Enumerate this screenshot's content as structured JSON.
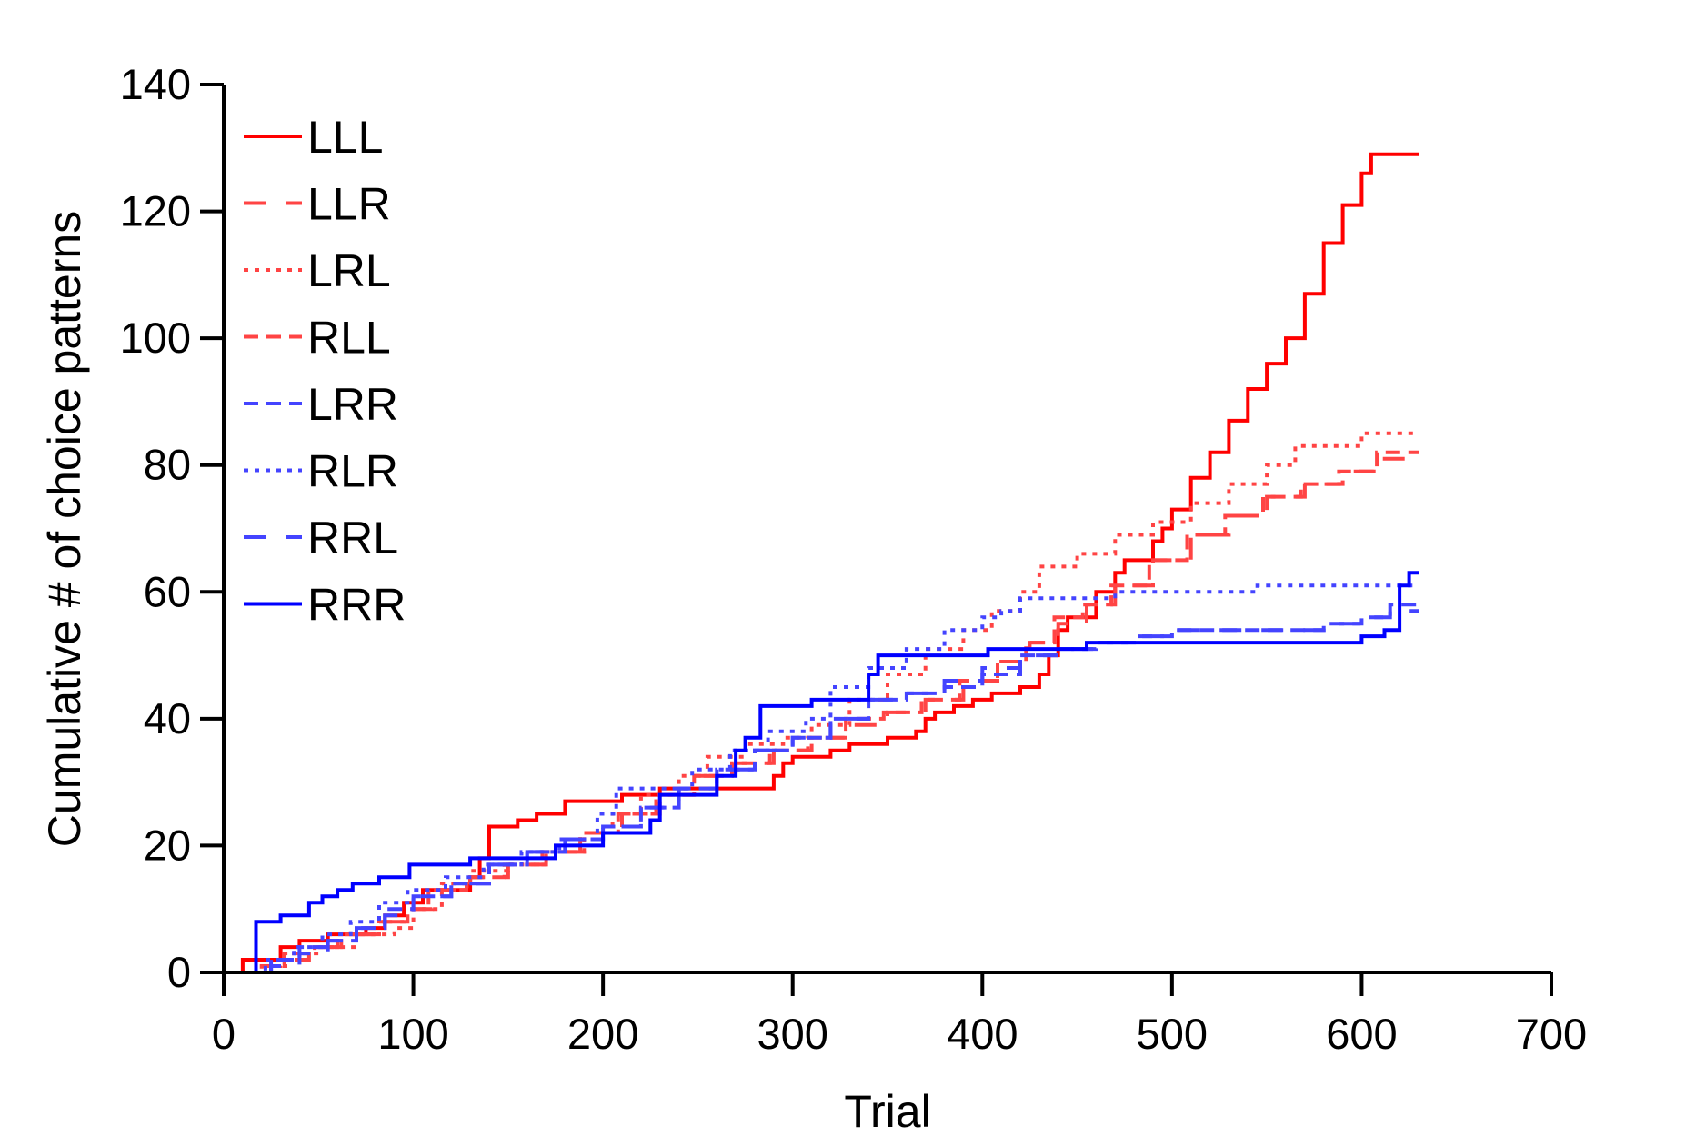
{
  "chart_data": {
    "type": "line",
    "title": "",
    "xlabel": "Trial",
    "ylabel": "Cumulative # of choice patterns",
    "xlim": [
      0,
      700
    ],
    "ylim": [
      0,
      140
    ],
    "xticks": [
      0,
      100,
      200,
      300,
      400,
      500,
      600,
      700
    ],
    "yticks": [
      0,
      20,
      40,
      60,
      80,
      100,
      120,
      140
    ],
    "grid": false,
    "legend_position": "top-left",
    "step": true,
    "series": [
      {
        "name": "LLL",
        "color": "#ff0000",
        "dash": "solid",
        "points": [
          [
            0,
            0
          ],
          [
            5,
            0
          ],
          [
            10,
            2
          ],
          [
            25,
            2
          ],
          [
            30,
            4
          ],
          [
            40,
            5
          ],
          [
            55,
            6
          ],
          [
            75,
            7
          ],
          [
            85,
            9
          ],
          [
            95,
            11
          ],
          [
            105,
            13
          ],
          [
            130,
            15
          ],
          [
            135,
            18
          ],
          [
            140,
            23
          ],
          [
            155,
            24
          ],
          [
            165,
            25
          ],
          [
            180,
            27
          ],
          [
            210,
            28
          ],
          [
            230,
            29
          ],
          [
            285,
            29
          ],
          [
            290,
            31
          ],
          [
            295,
            33
          ],
          [
            300,
            34
          ],
          [
            320,
            35
          ],
          [
            330,
            36
          ],
          [
            350,
            37
          ],
          [
            365,
            38
          ],
          [
            370,
            40
          ],
          [
            375,
            41
          ],
          [
            385,
            42
          ],
          [
            395,
            43
          ],
          [
            405,
            44
          ],
          [
            420,
            45
          ],
          [
            430,
            47
          ],
          [
            435,
            50
          ],
          [
            440,
            54
          ],
          [
            445,
            56
          ],
          [
            460,
            60
          ],
          [
            470,
            63
          ],
          [
            475,
            65
          ],
          [
            490,
            68
          ],
          [
            495,
            70
          ],
          [
            500,
            73
          ],
          [
            510,
            78
          ],
          [
            520,
            82
          ],
          [
            530,
            87
          ],
          [
            540,
            92
          ],
          [
            550,
            96
          ],
          [
            560,
            100
          ],
          [
            570,
            107
          ],
          [
            580,
            115
          ],
          [
            590,
            121
          ],
          [
            600,
            126
          ],
          [
            605,
            129
          ],
          [
            630,
            129
          ]
        ]
      },
      {
        "name": "LLR",
        "color": "#ff4444",
        "dash": "longdash",
        "points": [
          [
            0,
            0
          ],
          [
            10,
            0
          ],
          [
            20,
            1
          ],
          [
            30,
            2
          ],
          [
            45,
            4
          ],
          [
            60,
            6
          ],
          [
            80,
            8
          ],
          [
            95,
            10
          ],
          [
            110,
            13
          ],
          [
            130,
            15
          ],
          [
            150,
            17
          ],
          [
            170,
            19
          ],
          [
            190,
            22
          ],
          [
            210,
            25
          ],
          [
            230,
            28
          ],
          [
            250,
            31
          ],
          [
            270,
            33
          ],
          [
            290,
            35
          ],
          [
            310,
            37
          ],
          [
            330,
            39
          ],
          [
            350,
            41
          ],
          [
            370,
            43
          ],
          [
            390,
            46
          ],
          [
            410,
            49
          ],
          [
            425,
            52
          ],
          [
            440,
            55
          ],
          [
            455,
            58
          ],
          [
            470,
            61
          ],
          [
            490,
            65
          ],
          [
            510,
            69
          ],
          [
            530,
            72
          ],
          [
            550,
            75
          ],
          [
            570,
            77
          ],
          [
            590,
            79
          ],
          [
            610,
            81
          ],
          [
            630,
            81
          ]
        ]
      },
      {
        "name": "LRL",
        "color": "#ff4444",
        "dash": "dotted",
        "points": [
          [
            0,
            0
          ],
          [
            10,
            0
          ],
          [
            25,
            1
          ],
          [
            35,
            3
          ],
          [
            50,
            4
          ],
          [
            70,
            6
          ],
          [
            90,
            7
          ],
          [
            100,
            10
          ],
          [
            115,
            14
          ],
          [
            130,
            16
          ],
          [
            150,
            17
          ],
          [
            170,
            19
          ],
          [
            190,
            22
          ],
          [
            205,
            25
          ],
          [
            220,
            28
          ],
          [
            240,
            31
          ],
          [
            255,
            34
          ],
          [
            275,
            36
          ],
          [
            295,
            37
          ],
          [
            310,
            39
          ],
          [
            330,
            43
          ],
          [
            350,
            47
          ],
          [
            370,
            51
          ],
          [
            390,
            54
          ],
          [
            405,
            57
          ],
          [
            420,
            60
          ],
          [
            430,
            64
          ],
          [
            450,
            66
          ],
          [
            470,
            69
          ],
          [
            490,
            71
          ],
          [
            510,
            74
          ],
          [
            530,
            77
          ],
          [
            550,
            80
          ],
          [
            565,
            83
          ],
          [
            580,
            83
          ],
          [
            600,
            85
          ],
          [
            630,
            85
          ]
        ]
      },
      {
        "name": "RLL",
        "color": "#ff4444",
        "dash": "dashed",
        "points": [
          [
            0,
            0
          ],
          [
            12,
            0
          ],
          [
            22,
            1
          ],
          [
            32,
            3
          ],
          [
            48,
            4
          ],
          [
            62,
            6
          ],
          [
            82,
            8
          ],
          [
            97,
            10
          ],
          [
            108,
            13
          ],
          [
            128,
            15
          ],
          [
            148,
            17
          ],
          [
            168,
            19
          ],
          [
            188,
            22
          ],
          [
            208,
            25
          ],
          [
            228,
            28
          ],
          [
            248,
            31
          ],
          [
            268,
            33
          ],
          [
            288,
            35
          ],
          [
            308,
            37
          ],
          [
            328,
            40
          ],
          [
            348,
            41
          ],
          [
            368,
            43
          ],
          [
            388,
            46
          ],
          [
            408,
            49
          ],
          [
            423,
            52
          ],
          [
            438,
            56
          ],
          [
            453,
            58
          ],
          [
            468,
            61
          ],
          [
            488,
            65
          ],
          [
            508,
            69
          ],
          [
            528,
            72
          ],
          [
            548,
            75
          ],
          [
            568,
            77
          ],
          [
            588,
            79
          ],
          [
            608,
            82
          ],
          [
            630,
            82
          ]
        ]
      },
      {
        "name": "LRR",
        "color": "#4444ff",
        "dash": "dashed",
        "points": [
          [
            0,
            0
          ],
          [
            15,
            0
          ],
          [
            25,
            2
          ],
          [
            40,
            4
          ],
          [
            55,
            5
          ],
          [
            70,
            7
          ],
          [
            85,
            10
          ],
          [
            100,
            12
          ],
          [
            120,
            14
          ],
          [
            140,
            17
          ],
          [
            160,
            19
          ],
          [
            180,
            21
          ],
          [
            200,
            23
          ],
          [
            220,
            26
          ],
          [
            240,
            29
          ],
          [
            260,
            32
          ],
          [
            280,
            35
          ],
          [
            300,
            37
          ],
          [
            320,
            40
          ],
          [
            340,
            43
          ],
          [
            360,
            44
          ],
          [
            380,
            45
          ],
          [
            400,
            47
          ],
          [
            420,
            50
          ],
          [
            440,
            51
          ],
          [
            460,
            52
          ],
          [
            480,
            53
          ],
          [
            500,
            54
          ],
          [
            560,
            54
          ],
          [
            580,
            55
          ],
          [
            600,
            56
          ],
          [
            615,
            58
          ],
          [
            630,
            58
          ]
        ]
      },
      {
        "name": "RLR",
        "color": "#4444ff",
        "dash": "dotted",
        "points": [
          [
            0,
            0
          ],
          [
            12,
            0
          ],
          [
            22,
            2
          ],
          [
            37,
            4
          ],
          [
            52,
            6
          ],
          [
            67,
            8
          ],
          [
            82,
            11
          ],
          [
            97,
            13
          ],
          [
            117,
            15
          ],
          [
            137,
            17
          ],
          [
            157,
            19
          ],
          [
            177,
            21
          ],
          [
            197,
            25
          ],
          [
            207,
            29
          ],
          [
            230,
            29
          ],
          [
            247,
            32
          ],
          [
            267,
            35
          ],
          [
            287,
            38
          ],
          [
            307,
            40
          ],
          [
            320,
            45
          ],
          [
            340,
            48
          ],
          [
            360,
            51
          ],
          [
            380,
            54
          ],
          [
            400,
            56
          ],
          [
            410,
            57
          ],
          [
            420,
            59
          ],
          [
            460,
            59
          ],
          [
            470,
            60
          ],
          [
            540,
            60
          ],
          [
            545,
            61
          ],
          [
            630,
            61
          ]
        ]
      },
      {
        "name": "RRL",
        "color": "#4444ff",
        "dash": "longdash",
        "points": [
          [
            0,
            0
          ],
          [
            15,
            0
          ],
          [
            25,
            1
          ],
          [
            40,
            3
          ],
          [
            55,
            5
          ],
          [
            70,
            7
          ],
          [
            85,
            9
          ],
          [
            100,
            12
          ],
          [
            120,
            14
          ],
          [
            140,
            17
          ],
          [
            160,
            19
          ],
          [
            180,
            21
          ],
          [
            200,
            23
          ],
          [
            220,
            26
          ],
          [
            240,
            29
          ],
          [
            260,
            32
          ],
          [
            280,
            35
          ],
          [
            300,
            37
          ],
          [
            320,
            40
          ],
          [
            340,
            43
          ],
          [
            360,
            44
          ],
          [
            380,
            46
          ],
          [
            400,
            48
          ],
          [
            420,
            50
          ],
          [
            440,
            51
          ],
          [
            460,
            52
          ],
          [
            480,
            53
          ],
          [
            500,
            54
          ],
          [
            560,
            54
          ],
          [
            580,
            55
          ],
          [
            600,
            56
          ],
          [
            615,
            57
          ],
          [
            630,
            57
          ]
        ]
      },
      {
        "name": "RRR",
        "color": "#0000ff",
        "dash": "solid",
        "points": [
          [
            0,
            0
          ],
          [
            10,
            0
          ],
          [
            17,
            8
          ],
          [
            28,
            8
          ],
          [
            30,
            9
          ],
          [
            42,
            9
          ],
          [
            45,
            11
          ],
          [
            52,
            12
          ],
          [
            60,
            13
          ],
          [
            68,
            14
          ],
          [
            82,
            15
          ],
          [
            95,
            15
          ],
          [
            98,
            17
          ],
          [
            125,
            17
          ],
          [
            130,
            18
          ],
          [
            170,
            18
          ],
          [
            175,
            20
          ],
          [
            190,
            20
          ],
          [
            200,
            22
          ],
          [
            220,
            22
          ],
          [
            225,
            24
          ],
          [
            230,
            28
          ],
          [
            260,
            31
          ],
          [
            270,
            35
          ],
          [
            275,
            37
          ],
          [
            283,
            42
          ],
          [
            300,
            42
          ],
          [
            310,
            43
          ],
          [
            335,
            43
          ],
          [
            340,
            47
          ],
          [
            345,
            50
          ],
          [
            400,
            50
          ],
          [
            403,
            51
          ],
          [
            450,
            51
          ],
          [
            455,
            52
          ],
          [
            595,
            52
          ],
          [
            600,
            53
          ],
          [
            612,
            54
          ],
          [
            620,
            61
          ],
          [
            625,
            63
          ],
          [
            630,
            63
          ]
        ]
      }
    ]
  }
}
